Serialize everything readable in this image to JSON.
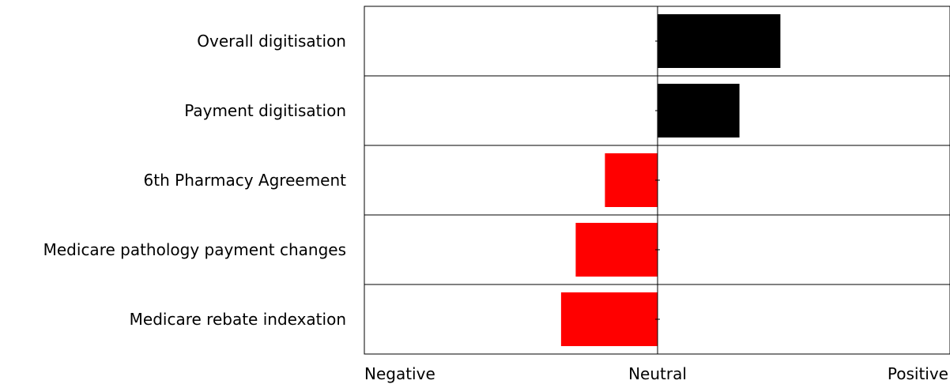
{
  "chart_data": {
    "type": "bar",
    "orientation": "horizontal",
    "categories": [
      "Overall digitisation",
      "Payment digitisation",
      "6th Pharmacy Agreement",
      "Medicare pathology payment changes",
      "Medicare rebate indexation"
    ],
    "values": [
      0.42,
      0.28,
      -0.18,
      -0.28,
      -0.33
    ],
    "xlim": [
      -1,
      1
    ],
    "x_tick_labels": [
      "Negative",
      "Neutral",
      "Positive"
    ],
    "title": "",
    "xlabel": "",
    "ylabel": "",
    "grid": "horizontal row separators",
    "legend": "none",
    "colors": {
      "positive": "#000000",
      "negative": "#ff0000",
      "frame": "#000000",
      "background": "#ffffff"
    }
  }
}
